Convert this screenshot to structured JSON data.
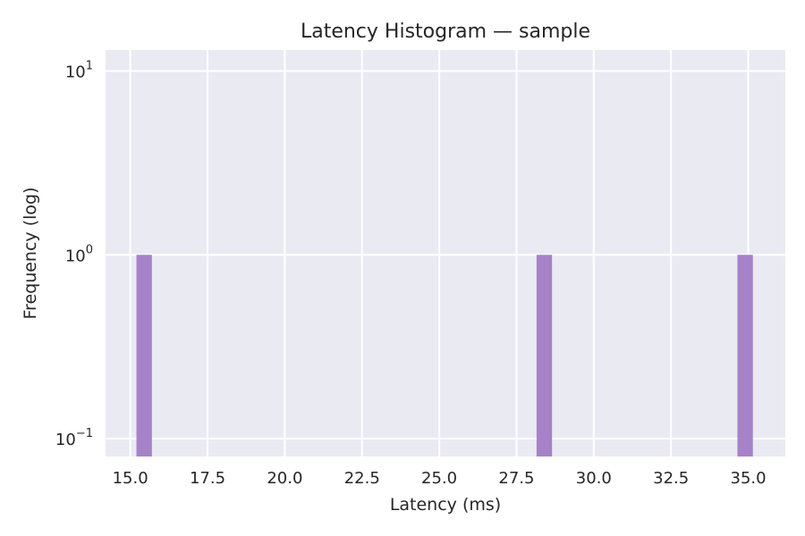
{
  "chart_data": {
    "type": "bar",
    "title": "Latency Histogram — sample",
    "xlabel": "Latency (ms)",
    "ylabel": "Frequency (log)",
    "yscale": "log",
    "xlim": [
      14.2,
      36.2
    ],
    "ylim": [
      0.08,
      13
    ],
    "xticks": [
      15.0,
      17.5,
      20.0,
      22.5,
      25.0,
      27.5,
      30.0,
      32.5,
      35.0
    ],
    "xtick_labels": [
      "15.0",
      "17.5",
      "20.0",
      "22.5",
      "25.0",
      "27.5",
      "30.0",
      "32.5",
      "35.0"
    ],
    "yticks": [
      {
        "value": 0.1,
        "base": "10",
        "exp": "−1"
      },
      {
        "value": 1,
        "base": "10",
        "exp": "0"
      },
      {
        "value": 10,
        "base": "10",
        "exp": "1"
      }
    ],
    "grid": true,
    "bars": [
      {
        "x0": 15.2,
        "x1": 15.7,
        "count": 1
      },
      {
        "x0": 28.15,
        "x1": 28.65,
        "count": 1
      },
      {
        "x0": 34.65,
        "x1": 35.15,
        "count": 1
      }
    ],
    "colors": {
      "bar": "#a682c9",
      "plot_bg": "#eaeaf2",
      "grid": "#ffffff",
      "text": "#262626"
    }
  }
}
